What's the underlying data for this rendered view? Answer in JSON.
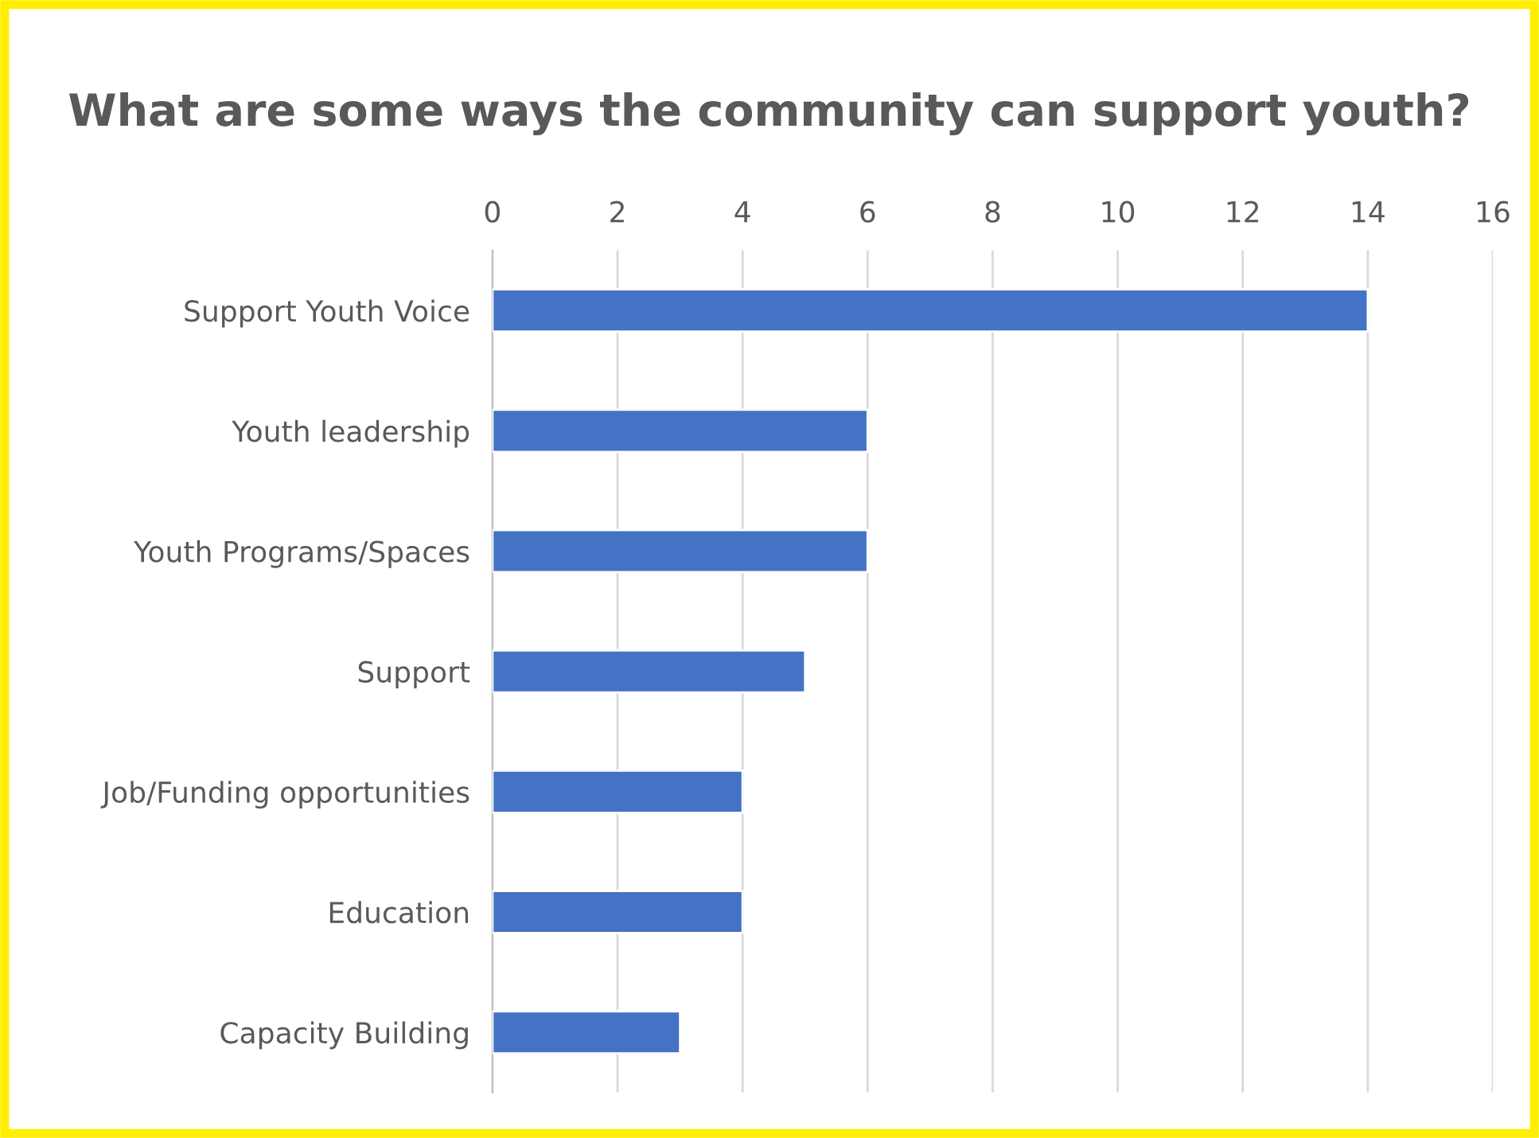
{
  "chart_data": {
    "type": "bar",
    "orientation": "horizontal",
    "title": "What are some ways the community can support youth?",
    "categories": [
      "Support Youth Voice",
      "Youth leadership",
      "Youth Programs/Spaces",
      "Support",
      "Job/Funding opportunities",
      "Education",
      "Capacity Building"
    ],
    "values": [
      14,
      6,
      6,
      5,
      4,
      4,
      3
    ],
    "color": "#4472c4",
    "xlim": [
      0,
      16
    ],
    "xticks": [
      0,
      2,
      4,
      6,
      8,
      10,
      12,
      14,
      16
    ],
    "grid": "x"
  }
}
